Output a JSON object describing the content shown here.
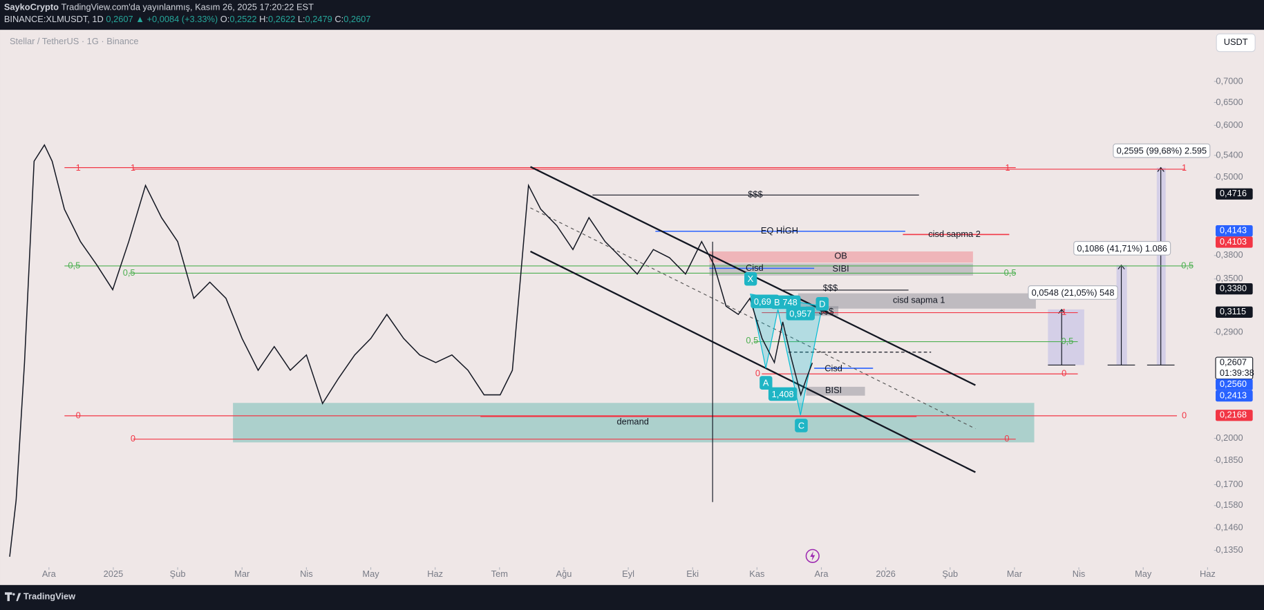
{
  "header": {
    "author": "SaykoCrypto",
    "published": "TradingView.com'da yayınlanmış, Kasım 26, 2025 17:20:22 EST",
    "symbol": "BINANCE:XLMUSDT, 1D",
    "last": "0,2607",
    "change": "▲ +0,0084 (+3.33%)",
    "ohlc": [
      {
        "key": "O:",
        "value": "0,2522"
      },
      {
        "key": "H:",
        "value": "0,2622"
      },
      {
        "key": "L:",
        "value": "0,2479"
      },
      {
        "key": "C:",
        "value": "0,2607"
      }
    ]
  },
  "chart_data": {
    "type": "line",
    "title": "Stellar / TetherUS · 1G · Binance",
    "currency": "USDT",
    "color": "#131722",
    "x": [
      -0.61,
      -0.51,
      -0.38,
      -0.23,
      -0.07,
      0.05,
      0.24,
      0.49,
      0.74,
      0.99,
      1.24,
      1.5,
      1.75,
      2.0,
      2.25,
      2.5,
      2.75,
      3.0,
      3.25,
      3.5,
      3.75,
      4.0,
      4.25,
      4.5,
      4.75,
      5.0,
      5.25,
      5.51,
      5.76,
      6.01,
      6.26,
      6.51,
      6.76,
      7.01,
      7.2,
      7.32,
      7.45,
      7.64,
      7.89,
      8.14,
      8.39,
      8.64,
      8.89,
      9.14,
      9.39,
      9.64,
      9.89,
      10.14,
      10.33,
      10.52,
      10.71,
      10.89,
      11.08,
      11.27,
      11.4,
      11.52,
      11.68,
      11.77,
      11.86
    ],
    "values": [
      0.132,
      0.161,
      0.261,
      0.529,
      0.56,
      0.529,
      0.447,
      0.399,
      0.368,
      0.337,
      0.399,
      0.486,
      0.434,
      0.399,
      0.327,
      0.346,
      0.327,
      0.284,
      0.254,
      0.276,
      0.254,
      0.268,
      0.226,
      0.247,
      0.268,
      0.284,
      0.309,
      0.284,
      0.268,
      0.261,
      0.268,
      0.254,
      0.233,
      0.233,
      0.254,
      0.346,
      0.486,
      0.447,
      0.422,
      0.388,
      0.434,
      0.399,
      0.377,
      0.356,
      0.388,
      0.377,
      0.356,
      0.399,
      0.368,
      0.318,
      0.309,
      0.327,
      0.284,
      0.261,
      0.301,
      0.268,
      0.233,
      0.247,
      0.2607
    ],
    "xlim": [
      -0.66,
      18.1
    ],
    "xticks": [
      {
        "value": 0,
        "label": "Ara"
      },
      {
        "value": 1,
        "label": "2025"
      },
      {
        "value": 2,
        "label": "Şub"
      },
      {
        "value": 3,
        "label": "Mar"
      },
      {
        "value": 4,
        "label": "Nis"
      },
      {
        "value": 5,
        "label": "May"
      },
      {
        "value": 6,
        "label": "Haz"
      },
      {
        "value": 7,
        "label": "Tem"
      },
      {
        "value": 8,
        "label": "Ağu"
      },
      {
        "value": 9,
        "label": "Eyl"
      },
      {
        "value": 10,
        "label": "Eki"
      },
      {
        "value": 11,
        "label": "Kas"
      },
      {
        "value": 12,
        "label": "Ara"
      },
      {
        "value": 13,
        "label": "2026"
      },
      {
        "value": 14,
        "label": "Şub"
      },
      {
        "value": 15,
        "label": "Mar"
      },
      {
        "value": 16,
        "label": "Nis"
      },
      {
        "value": 17,
        "label": "May"
      },
      {
        "value": 18,
        "label": "Haz"
      }
    ],
    "ylim": [
      0.1272,
      0.839
    ],
    "log_scale": true,
    "grid": false,
    "yticks": [
      {
        "value": 0.7,
        "label": "0,7000"
      },
      {
        "value": 0.65,
        "label": "0,6500"
      },
      {
        "value": 0.6,
        "label": "0,6000"
      },
      {
        "value": 0.54,
        "label": "0,5400"
      },
      {
        "value": 0.5,
        "label": "0,5000"
      },
      {
        "value": 0.38,
        "label": "0,3800"
      },
      {
        "value": 0.35,
        "label": "0,3500"
      },
      {
        "value": 0.29,
        "label": "0,2900"
      },
      {
        "value": 0.2,
        "label": "0,2000"
      },
      {
        "value": 0.185,
        "label": "0,1850"
      },
      {
        "value": 0.17,
        "label": "0,1700"
      },
      {
        "value": 0.158,
        "label": "0,1580"
      },
      {
        "value": 0.146,
        "label": "0,1460"
      },
      {
        "value": 0.135,
        "label": "0,1350"
      }
    ],
    "price_labels": [
      {
        "value": 0.4716,
        "label": "0,4716",
        "color": "#131722"
      },
      {
        "value": 0.4143,
        "label": "0,4143",
        "color": "#2962ff"
      },
      {
        "value": 0.4103,
        "label": "0,4103",
        "color": "#f23645"
      },
      {
        "value": 0.338,
        "label": "0,3380",
        "color": "#131722"
      },
      {
        "value": 0.3115,
        "label": "0,3115",
        "color": "#131722"
      },
      {
        "value": 0.2607,
        "label": "0,2607",
        "color": "#ffffff",
        "sub": "01:39:38"
      },
      {
        "value": 0.256,
        "label": "0,2560",
        "color": "#2962ff"
      },
      {
        "value": 0.2413,
        "label": "0,2413",
        "color": "#2962ff"
      },
      {
        "value": 0.2168,
        "label": "0,2168",
        "color": "#f23645"
      }
    ]
  },
  "drawings": {
    "texts": [
      "1",
      "1",
      "1",
      "1",
      "0,5",
      "0,5",
      "0,5",
      "0,5",
      "0,5",
      "0,5",
      "0",
      "0",
      "0",
      "0",
      "0",
      "0",
      "1",
      "$$$",
      "EQ HİGH",
      "cisd sapma 2",
      "OB",
      "Cisd",
      "SIBI",
      "$$$",
      "cisd sapma 1",
      "$$$",
      "Cisd",
      "BISI",
      "demand",
      "X",
      "A",
      "0,692",
      "B",
      "748",
      "0,957",
      "D",
      "1,408",
      "C",
      "0,2595 (99,68%) 2.595",
      "0,1086 (41,71%) 1.086",
      "0,0548 (21,05%) 548"
    ]
  },
  "footer": {
    "logo": "TradingView"
  }
}
